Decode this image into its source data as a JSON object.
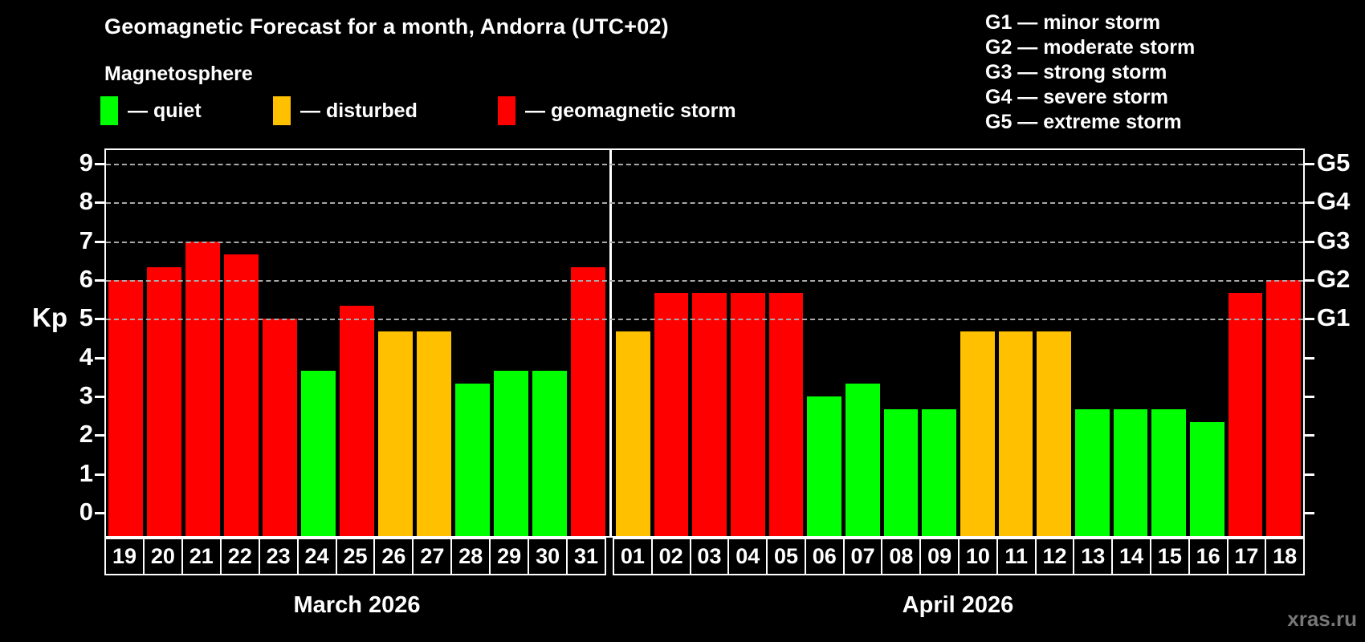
{
  "title": "Geomagnetic Forecast for a month, Andorra (UTC+02)",
  "subtitle": "Magnetosphere",
  "legend": {
    "quiet": "— quiet",
    "disturbed": "— disturbed",
    "storm": "— geomagnetic storm"
  },
  "g_legend": [
    "G1 — minor storm",
    "G2 — moderate storm",
    "G3 — strong storm",
    "G4 — severe storm",
    "G5 — extreme storm"
  ],
  "colors": {
    "quiet": "#00ff00",
    "disturbed": "#ffc000",
    "storm": "#ff0000",
    "grid": "#aaaaaa",
    "frame": "#ffffff",
    "watermark": "#777777"
  },
  "axis": {
    "kp_ticks": [
      0,
      1,
      2,
      3,
      4,
      5,
      6,
      7,
      8,
      9
    ],
    "gridlines_kp": [
      5,
      6,
      7,
      8,
      9
    ],
    "g_scale": [
      {
        "label": "G5",
        "kp": 9
      },
      {
        "label": "G4",
        "kp": 8
      },
      {
        "label": "G3",
        "kp": 7
      },
      {
        "label": "G2",
        "kp": 6
      },
      {
        "label": "G1",
        "kp": 5
      }
    ]
  },
  "watermark": "xras.ru",
  "chart_data": {
    "type": "bar",
    "title": "Geomagnetic Forecast for a month, Andorra (UTC+02)",
    "xlabel": "",
    "ylabel": "Kp",
    "ylim": [
      0,
      9
    ],
    "grid": "horizontal dashed at Kp 5,6,7,8,9 (G1–G5)",
    "legend_position": "top",
    "status_meaning": {
      "quiet": "green",
      "disturbed": "orange",
      "storm": "red"
    },
    "months": [
      {
        "label": "March 2026",
        "days": [
          "19",
          "20",
          "21",
          "22",
          "23",
          "24",
          "25",
          "26",
          "27",
          "28",
          "29",
          "30",
          "31"
        ],
        "values": [
          6.0,
          6.33,
          7.0,
          6.67,
          5.0,
          3.67,
          5.33,
          4.67,
          4.67,
          3.33,
          3.67,
          3.67,
          6.33
        ],
        "status": [
          "storm",
          "storm",
          "storm",
          "storm",
          "storm",
          "quiet",
          "storm",
          "disturbed",
          "disturbed",
          "quiet",
          "quiet",
          "quiet",
          "storm"
        ]
      },
      {
        "label": "April 2026",
        "days": [
          "01",
          "02",
          "03",
          "04",
          "05",
          "06",
          "07",
          "08",
          "09",
          "10",
          "11",
          "12",
          "13",
          "14",
          "15",
          "16",
          "17",
          "18"
        ],
        "values": [
          4.67,
          5.67,
          5.67,
          5.67,
          5.67,
          3.0,
          3.33,
          2.67,
          2.67,
          4.67,
          4.67,
          4.67,
          2.67,
          2.67,
          2.67,
          2.33,
          5.67,
          6.0
        ],
        "status": [
          "disturbed",
          "storm",
          "storm",
          "storm",
          "storm",
          "quiet",
          "quiet",
          "quiet",
          "quiet",
          "disturbed",
          "disturbed",
          "disturbed",
          "quiet",
          "quiet",
          "quiet",
          "quiet",
          "storm",
          "storm"
        ]
      }
    ]
  }
}
